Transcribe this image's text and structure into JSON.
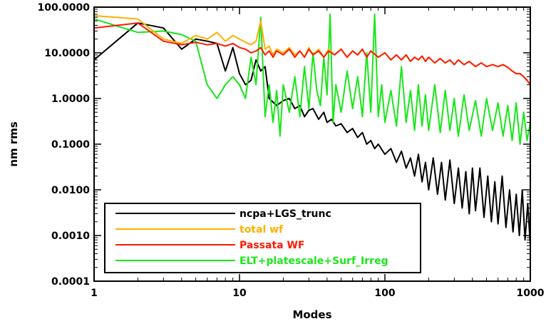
{
  "chart_data": {
    "type": "line",
    "title": "",
    "xlabel": "Modes",
    "ylabel": "nm rms",
    "xscale": "log",
    "yscale": "log",
    "xlim": [
      1,
      1000
    ],
    "ylim": [
      0.0001,
      100
    ],
    "x_ticks": [
      1,
      10,
      100,
      1000
    ],
    "x_tick_labels": [
      "1",
      "10",
      "100",
      "1000"
    ],
    "y_ticks": [
      0.0001,
      0.001,
      0.01,
      0.1,
      1,
      10,
      100
    ],
    "y_tick_labels": [
      "0.0001",
      "0.0010",
      "0.0100",
      "0.1000",
      "1.0000",
      "10.0000",
      "100.0000"
    ],
    "grid": false,
    "legend_position": "bottom-left",
    "series": [
      {
        "name": "ncpa+LGS_trunc",
        "color": "#000000",
        "points": [
          [
            1,
            7
          ],
          [
            2,
            45
          ],
          [
            3,
            35
          ],
          [
            4,
            12
          ],
          [
            5,
            20
          ],
          [
            6,
            18
          ],
          [
            7,
            16
          ],
          [
            8,
            4
          ],
          [
            9,
            13
          ],
          [
            10,
            3.5
          ],
          [
            11,
            2
          ],
          [
            12,
            2.5
          ],
          [
            13,
            7
          ],
          [
            14,
            4
          ],
          [
            15,
            5
          ],
          [
            16,
            1
          ],
          [
            18,
            0.7
          ],
          [
            20,
            0.9
          ],
          [
            22,
            1
          ],
          [
            24,
            0.6
          ],
          [
            26,
            0.7
          ],
          [
            28,
            0.4
          ],
          [
            30,
            0.55
          ],
          [
            32,
            0.6
          ],
          [
            35,
            0.35
          ],
          [
            38,
            0.5
          ],
          [
            40,
            0.3
          ],
          [
            43,
            0.35
          ],
          [
            46,
            0.25
          ],
          [
            50,
            0.28
          ],
          [
            55,
            0.18
          ],
          [
            60,
            0.22
          ],
          [
            65,
            0.14
          ],
          [
            70,
            0.18
          ],
          [
            75,
            0.1
          ],
          [
            80,
            0.12
          ],
          [
            85,
            0.08
          ],
          [
            90,
            0.1
          ],
          [
            100,
            0.06
          ],
          [
            110,
            0.08
          ],
          [
            120,
            0.04
          ],
          [
            130,
            0.07
          ],
          [
            140,
            0.03
          ],
          [
            150,
            0.05
          ],
          [
            160,
            0.02
          ],
          [
            170,
            0.06
          ],
          [
            180,
            0.015
          ],
          [
            190,
            0.04
          ],
          [
            200,
            0.01
          ],
          [
            215,
            0.05
          ],
          [
            230,
            0.008
          ],
          [
            245,
            0.04
          ],
          [
            260,
            0.006
          ],
          [
            280,
            0.045
          ],
          [
            300,
            0.005
          ],
          [
            320,
            0.03
          ],
          [
            340,
            0.004
          ],
          [
            360,
            0.025
          ],
          [
            380,
            0.003
          ],
          [
            400,
            0.03
          ],
          [
            420,
            0.0035
          ],
          [
            450,
            0.03
          ],
          [
            480,
            0.0025
          ],
          [
            510,
            0.02
          ],
          [
            540,
            0.002
          ],
          [
            570,
            0.015
          ],
          [
            600,
            0.0018
          ],
          [
            640,
            0.02
          ],
          [
            680,
            0.0015
          ],
          [
            720,
            0.01
          ],
          [
            760,
            0.0012
          ],
          [
            800,
            0.008
          ],
          [
            840,
            0.001
          ],
          [
            880,
            0.01
          ],
          [
            920,
            0.0008
          ],
          [
            960,
            0.005
          ],
          [
            1000,
            0.0006
          ]
        ]
      },
      {
        "name": "total wf",
        "color": "#ffb000",
        "points": [
          [
            1,
            65
          ],
          [
            2,
            55
          ],
          [
            3,
            20
          ],
          [
            4,
            16
          ],
          [
            5,
            24
          ],
          [
            6,
            20
          ],
          [
            7,
            28
          ],
          [
            8,
            18
          ],
          [
            9,
            24
          ],
          [
            10,
            20
          ],
          [
            11,
            17
          ],
          [
            12,
            15
          ],
          [
            13,
            18
          ],
          [
            14,
            50
          ],
          [
            15,
            12
          ],
          [
            16,
            14
          ],
          [
            17,
            9
          ],
          [
            18,
            12
          ],
          [
            20,
            10
          ],
          [
            22,
            13
          ],
          [
            24,
            9
          ],
          [
            26,
            11
          ],
          [
            28,
            8
          ],
          [
            30,
            13
          ],
          [
            32,
            9
          ],
          [
            35,
            12
          ],
          [
            38,
            8
          ],
          [
            41,
            12
          ],
          [
            45,
            9
          ],
          [
            50,
            12
          ],
          [
            55,
            8
          ],
          [
            60,
            11
          ],
          [
            65,
            9
          ],
          [
            70,
            12
          ],
          [
            75,
            8
          ],
          [
            80,
            11
          ],
          [
            90,
            8
          ],
          [
            100,
            10
          ],
          [
            110,
            7
          ],
          [
            120,
            9
          ],
          [
            130,
            7
          ],
          [
            140,
            9
          ],
          [
            150,
            6.5
          ],
          [
            160,
            8
          ],
          [
            170,
            7
          ],
          [
            180,
            8.5
          ],
          [
            190,
            6.5
          ],
          [
            200,
            8
          ],
          [
            220,
            6
          ],
          [
            240,
            7.5
          ],
          [
            260,
            6
          ],
          [
            280,
            7
          ],
          [
            300,
            5.5
          ],
          [
            320,
            7
          ],
          [
            350,
            5.5
          ],
          [
            380,
            6.5
          ],
          [
            420,
            5
          ],
          [
            460,
            6
          ],
          [
            500,
            5
          ],
          [
            550,
            5.5
          ],
          [
            600,
            5
          ],
          [
            650,
            5.5
          ],
          [
            700,
            4.8
          ],
          [
            750,
            4
          ],
          [
            800,
            3.5
          ],
          [
            850,
            3.5
          ],
          [
            900,
            3
          ],
          [
            950,
            2.5
          ],
          [
            1000,
            2
          ]
        ]
      },
      {
        "name": "Passata WF",
        "color": "#ff1a00",
        "points": [
          [
            1,
            35
          ],
          [
            2,
            45
          ],
          [
            3,
            18
          ],
          [
            4,
            15
          ],
          [
            5,
            17
          ],
          [
            6,
            15
          ],
          [
            7,
            16
          ],
          [
            8,
            14
          ],
          [
            9,
            16
          ],
          [
            10,
            13
          ],
          [
            11,
            12
          ],
          [
            12,
            10
          ],
          [
            13,
            11
          ],
          [
            14,
            13
          ],
          [
            15,
            9
          ],
          [
            16,
            11
          ],
          [
            17,
            8
          ],
          [
            18,
            11
          ],
          [
            20,
            9
          ],
          [
            22,
            12
          ],
          [
            24,
            8
          ],
          [
            26,
            11
          ],
          [
            28,
            8
          ],
          [
            30,
            12
          ],
          [
            32,
            9
          ],
          [
            35,
            11
          ],
          [
            38,
            8
          ],
          [
            41,
            11
          ],
          [
            45,
            9
          ],
          [
            50,
            12
          ],
          [
            55,
            8
          ],
          [
            60,
            11
          ],
          [
            65,
            9
          ],
          [
            70,
            12
          ],
          [
            75,
            8
          ],
          [
            80,
            11
          ],
          [
            90,
            8
          ],
          [
            100,
            10
          ],
          [
            110,
            7
          ],
          [
            120,
            9
          ],
          [
            130,
            7
          ],
          [
            140,
            9
          ],
          [
            150,
            6.5
          ],
          [
            160,
            8
          ],
          [
            170,
            7
          ],
          [
            180,
            8.5
          ],
          [
            190,
            6.5
          ],
          [
            200,
            8
          ],
          [
            220,
            6
          ],
          [
            240,
            7.5
          ],
          [
            260,
            6
          ],
          [
            280,
            7
          ],
          [
            300,
            5.5
          ],
          [
            320,
            7
          ],
          [
            350,
            5.5
          ],
          [
            380,
            6.5
          ],
          [
            420,
            5
          ],
          [
            460,
            6
          ],
          [
            500,
            5
          ],
          [
            550,
            5.5
          ],
          [
            600,
            5
          ],
          [
            650,
            5.5
          ],
          [
            700,
            4.8
          ],
          [
            750,
            4
          ],
          [
            800,
            3.5
          ],
          [
            850,
            3.5
          ],
          [
            900,
            3
          ],
          [
            950,
            2.5
          ],
          [
            1000,
            2
          ]
        ]
      },
      {
        "name": "ELT+platescale+Surf_Irreg",
        "color": "#19e619",
        "points": [
          [
            1,
            55
          ],
          [
            2,
            28
          ],
          [
            3,
            30
          ],
          [
            4,
            25
          ],
          [
            5,
            18
          ],
          [
            6,
            2
          ],
          [
            7,
            1
          ],
          [
            8,
            2
          ],
          [
            9,
            3
          ],
          [
            10,
            2
          ],
          [
            11,
            1
          ],
          [
            12,
            8
          ],
          [
            13,
            2
          ],
          [
            14,
            60
          ],
          [
            15,
            0.4
          ],
          [
            16,
            2
          ],
          [
            17,
            0.3
          ],
          [
            18,
            1.5
          ],
          [
            19,
            0.15
          ],
          [
            20,
            2
          ],
          [
            22,
            0.5
          ],
          [
            24,
            3
          ],
          [
            26,
            0.4
          ],
          [
            28,
            5
          ],
          [
            30,
            0.6
          ],
          [
            32,
            10
          ],
          [
            34,
            1.5
          ],
          [
            36,
            0.7
          ],
          [
            38,
            8
          ],
          [
            40,
            1.2
          ],
          [
            42,
            70
          ],
          [
            44,
            0.3
          ],
          [
            46,
            2
          ],
          [
            50,
            0.5
          ],
          [
            55,
            4
          ],
          [
            60,
            0.6
          ],
          [
            65,
            3
          ],
          [
            70,
            0.4
          ],
          [
            75,
            10
          ],
          [
            80,
            0.5
          ],
          [
            85,
            70
          ],
          [
            90,
            0.4
          ],
          [
            95,
            2
          ],
          [
            100,
            0.3
          ],
          [
            110,
            1.5
          ],
          [
            120,
            0.25
          ],
          [
            130,
            5
          ],
          [
            140,
            0.3
          ],
          [
            150,
            1.5
          ],
          [
            160,
            0.2
          ],
          [
            170,
            2
          ],
          [
            180,
            0.25
          ],
          [
            190,
            1.2
          ],
          [
            200,
            0.2
          ],
          [
            220,
            2
          ],
          [
            240,
            0.18
          ],
          [
            260,
            1.5
          ],
          [
            280,
            0.2
          ],
          [
            300,
            1
          ],
          [
            320,
            0.15
          ],
          [
            350,
            1.2
          ],
          [
            380,
            0.2
          ],
          [
            420,
            0.9
          ],
          [
            460,
            0.15
          ],
          [
            500,
            1
          ],
          [
            550,
            0.2
          ],
          [
            600,
            0.8
          ],
          [
            650,
            0.15
          ],
          [
            700,
            0.7
          ],
          [
            750,
            0.12
          ],
          [
            800,
            0.8
          ],
          [
            850,
            0.1
          ],
          [
            900,
            0.5
          ],
          [
            950,
            0.12
          ],
          [
            1000,
            0.3
          ]
        ]
      }
    ]
  }
}
